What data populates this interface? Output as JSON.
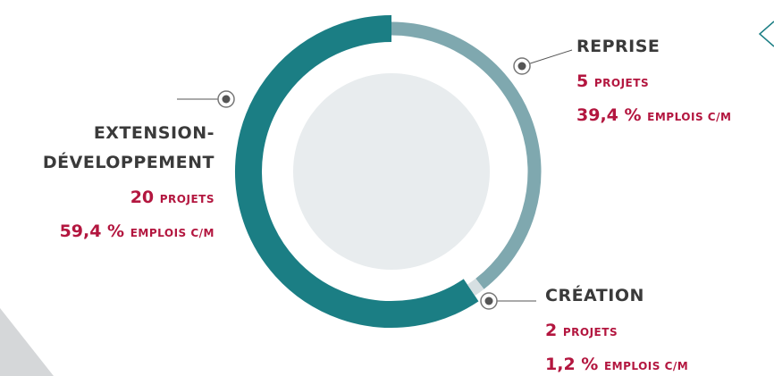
{
  "chart_data": {
    "type": "donut",
    "categories": [
      "EXTENSION-DÉVELOPPEMENT",
      "REPRISE",
      "CRÉATION"
    ],
    "projets": [
      20,
      5,
      2
    ],
    "projets_unit": "PROJETS",
    "values": [
      59.4,
      39.4,
      1.2
    ],
    "value_labels": [
      "59,4 %",
      "39,4 %",
      "1,2 %"
    ],
    "values_unit": "EMPLOIS C/M",
    "colors": [
      "#1b7e84",
      "#7fa8af",
      "#d6dfe2"
    ]
  }
}
